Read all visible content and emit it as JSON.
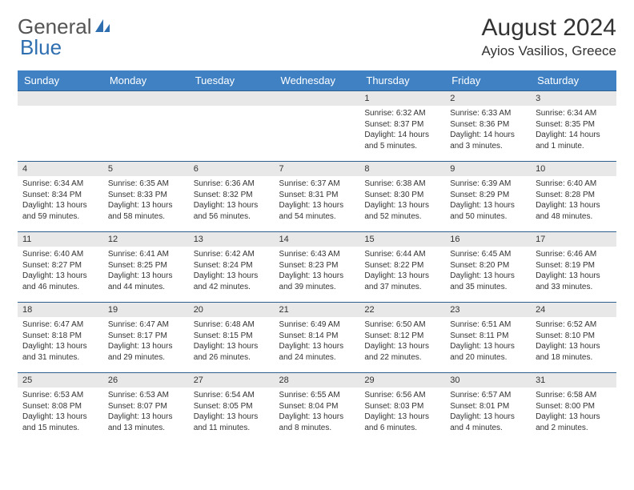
{
  "brand": {
    "part1": "General",
    "part2": "Blue"
  },
  "title": "August 2024",
  "location": "Ayios Vasilios, Greece",
  "colors": {
    "header_bg": "#3f81c3",
    "header_text": "#ffffff",
    "daynum_bg": "#e8e8e8",
    "row_border": "#2f5f8f",
    "brand_blue": "#2f6fb0",
    "text": "#333333",
    "background": "#ffffff"
  },
  "day_headers": [
    "Sunday",
    "Monday",
    "Tuesday",
    "Wednesday",
    "Thursday",
    "Friday",
    "Saturday"
  ],
  "weeks": [
    [
      {
        "empty": true
      },
      {
        "empty": true
      },
      {
        "empty": true
      },
      {
        "empty": true
      },
      {
        "day": "1",
        "sunrise": "Sunrise: 6:32 AM",
        "sunset": "Sunset: 8:37 PM",
        "daylight": "Daylight: 14 hours and 5 minutes."
      },
      {
        "day": "2",
        "sunrise": "Sunrise: 6:33 AM",
        "sunset": "Sunset: 8:36 PM",
        "daylight": "Daylight: 14 hours and 3 minutes."
      },
      {
        "day": "3",
        "sunrise": "Sunrise: 6:34 AM",
        "sunset": "Sunset: 8:35 PM",
        "daylight": "Daylight: 14 hours and 1 minute."
      }
    ],
    [
      {
        "day": "4",
        "sunrise": "Sunrise: 6:34 AM",
        "sunset": "Sunset: 8:34 PM",
        "daylight": "Daylight: 13 hours and 59 minutes."
      },
      {
        "day": "5",
        "sunrise": "Sunrise: 6:35 AM",
        "sunset": "Sunset: 8:33 PM",
        "daylight": "Daylight: 13 hours and 58 minutes."
      },
      {
        "day": "6",
        "sunrise": "Sunrise: 6:36 AM",
        "sunset": "Sunset: 8:32 PM",
        "daylight": "Daylight: 13 hours and 56 minutes."
      },
      {
        "day": "7",
        "sunrise": "Sunrise: 6:37 AM",
        "sunset": "Sunset: 8:31 PM",
        "daylight": "Daylight: 13 hours and 54 minutes."
      },
      {
        "day": "8",
        "sunrise": "Sunrise: 6:38 AM",
        "sunset": "Sunset: 8:30 PM",
        "daylight": "Daylight: 13 hours and 52 minutes."
      },
      {
        "day": "9",
        "sunrise": "Sunrise: 6:39 AM",
        "sunset": "Sunset: 8:29 PM",
        "daylight": "Daylight: 13 hours and 50 minutes."
      },
      {
        "day": "10",
        "sunrise": "Sunrise: 6:40 AM",
        "sunset": "Sunset: 8:28 PM",
        "daylight": "Daylight: 13 hours and 48 minutes."
      }
    ],
    [
      {
        "day": "11",
        "sunrise": "Sunrise: 6:40 AM",
        "sunset": "Sunset: 8:27 PM",
        "daylight": "Daylight: 13 hours and 46 minutes."
      },
      {
        "day": "12",
        "sunrise": "Sunrise: 6:41 AM",
        "sunset": "Sunset: 8:25 PM",
        "daylight": "Daylight: 13 hours and 44 minutes."
      },
      {
        "day": "13",
        "sunrise": "Sunrise: 6:42 AM",
        "sunset": "Sunset: 8:24 PM",
        "daylight": "Daylight: 13 hours and 42 minutes."
      },
      {
        "day": "14",
        "sunrise": "Sunrise: 6:43 AM",
        "sunset": "Sunset: 8:23 PM",
        "daylight": "Daylight: 13 hours and 39 minutes."
      },
      {
        "day": "15",
        "sunrise": "Sunrise: 6:44 AM",
        "sunset": "Sunset: 8:22 PM",
        "daylight": "Daylight: 13 hours and 37 minutes."
      },
      {
        "day": "16",
        "sunrise": "Sunrise: 6:45 AM",
        "sunset": "Sunset: 8:20 PM",
        "daylight": "Daylight: 13 hours and 35 minutes."
      },
      {
        "day": "17",
        "sunrise": "Sunrise: 6:46 AM",
        "sunset": "Sunset: 8:19 PM",
        "daylight": "Daylight: 13 hours and 33 minutes."
      }
    ],
    [
      {
        "day": "18",
        "sunrise": "Sunrise: 6:47 AM",
        "sunset": "Sunset: 8:18 PM",
        "daylight": "Daylight: 13 hours and 31 minutes."
      },
      {
        "day": "19",
        "sunrise": "Sunrise: 6:47 AM",
        "sunset": "Sunset: 8:17 PM",
        "daylight": "Daylight: 13 hours and 29 minutes."
      },
      {
        "day": "20",
        "sunrise": "Sunrise: 6:48 AM",
        "sunset": "Sunset: 8:15 PM",
        "daylight": "Daylight: 13 hours and 26 minutes."
      },
      {
        "day": "21",
        "sunrise": "Sunrise: 6:49 AM",
        "sunset": "Sunset: 8:14 PM",
        "daylight": "Daylight: 13 hours and 24 minutes."
      },
      {
        "day": "22",
        "sunrise": "Sunrise: 6:50 AM",
        "sunset": "Sunset: 8:12 PM",
        "daylight": "Daylight: 13 hours and 22 minutes."
      },
      {
        "day": "23",
        "sunrise": "Sunrise: 6:51 AM",
        "sunset": "Sunset: 8:11 PM",
        "daylight": "Daylight: 13 hours and 20 minutes."
      },
      {
        "day": "24",
        "sunrise": "Sunrise: 6:52 AM",
        "sunset": "Sunset: 8:10 PM",
        "daylight": "Daylight: 13 hours and 18 minutes."
      }
    ],
    [
      {
        "day": "25",
        "sunrise": "Sunrise: 6:53 AM",
        "sunset": "Sunset: 8:08 PM",
        "daylight": "Daylight: 13 hours and 15 minutes."
      },
      {
        "day": "26",
        "sunrise": "Sunrise: 6:53 AM",
        "sunset": "Sunset: 8:07 PM",
        "daylight": "Daylight: 13 hours and 13 minutes."
      },
      {
        "day": "27",
        "sunrise": "Sunrise: 6:54 AM",
        "sunset": "Sunset: 8:05 PM",
        "daylight": "Daylight: 13 hours and 11 minutes."
      },
      {
        "day": "28",
        "sunrise": "Sunrise: 6:55 AM",
        "sunset": "Sunset: 8:04 PM",
        "daylight": "Daylight: 13 hours and 8 minutes."
      },
      {
        "day": "29",
        "sunrise": "Sunrise: 6:56 AM",
        "sunset": "Sunset: 8:03 PM",
        "daylight": "Daylight: 13 hours and 6 minutes."
      },
      {
        "day": "30",
        "sunrise": "Sunrise: 6:57 AM",
        "sunset": "Sunset: 8:01 PM",
        "daylight": "Daylight: 13 hours and 4 minutes."
      },
      {
        "day": "31",
        "sunrise": "Sunrise: 6:58 AM",
        "sunset": "Sunset: 8:00 PM",
        "daylight": "Daylight: 13 hours and 2 minutes."
      }
    ]
  ]
}
